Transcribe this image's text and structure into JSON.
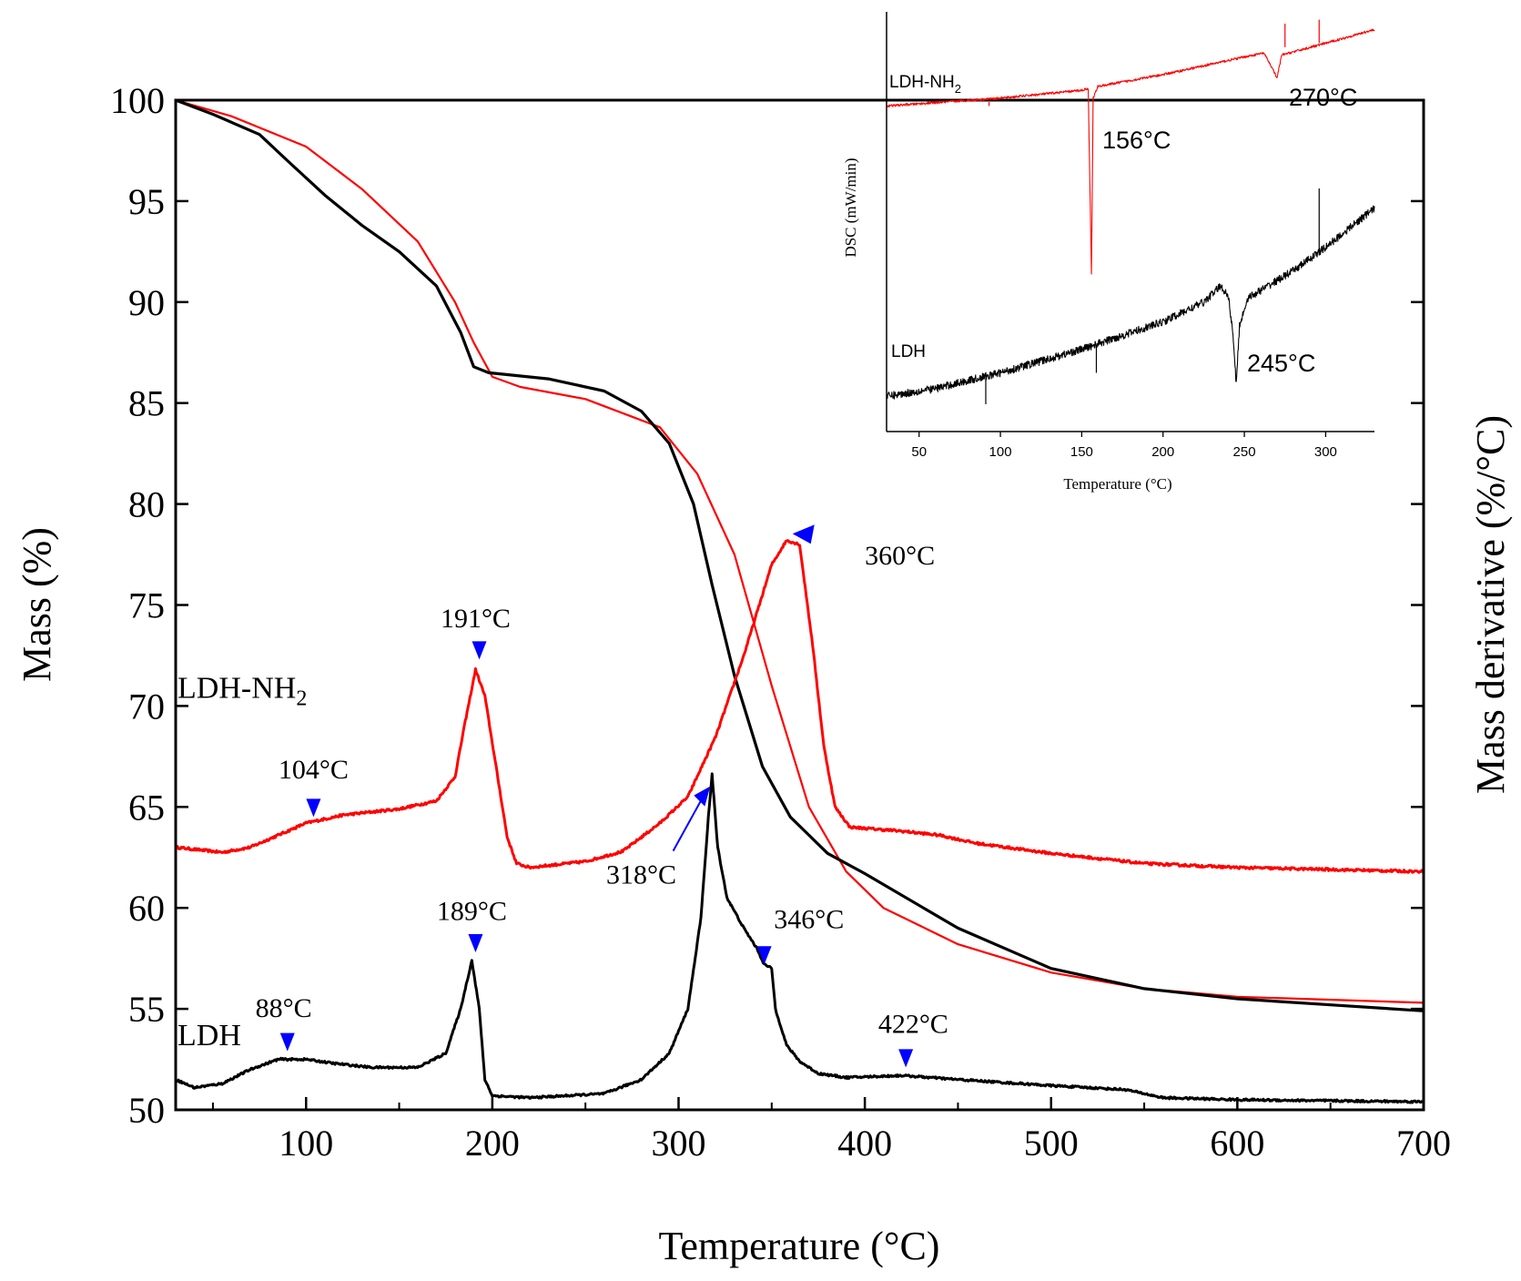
{
  "chart_data": [
    {
      "type": "line",
      "role": "main",
      "xlabel": "Temperature (°C)",
      "ylabel": "Mass (%)",
      "y2label": "Mass derivative (%/°C)",
      "xlim": [
        30,
        700
      ],
      "ylim": [
        50,
        100
      ],
      "x_ticks": [
        100,
        200,
        300,
        400,
        500,
        600,
        700
      ],
      "y_ticks": [
        50,
        55,
        60,
        65,
        70,
        75,
        80,
        85,
        90,
        95,
        100
      ],
      "colors": {
        "LDH": "#000000",
        "LDH-NH2": "#ff0000",
        "marker": "#0000ff"
      },
      "series": [
        {
          "name": "LDH-NH2 mass",
          "color": "#ff0000",
          "kind": "tga",
          "points": [
            [
              30,
              100
            ],
            [
              60,
              99.2
            ],
            [
              100,
              97.7
            ],
            [
              130,
              95.6
            ],
            [
              160,
              93
            ],
            [
              180,
              90
            ],
            [
              190,
              88
            ],
            [
              200,
              86.3
            ],
            [
              215,
              85.8
            ],
            [
              250,
              85.2
            ],
            [
              290,
              83.8
            ],
            [
              310,
              81.5
            ],
            [
              330,
              77.5
            ],
            [
              350,
              71
            ],
            [
              370,
              65
            ],
            [
              390,
              61.8
            ],
            [
              410,
              60
            ],
            [
              450,
              58.2
            ],
            [
              500,
              56.8
            ],
            [
              550,
              56
            ],
            [
              600,
              55.6
            ],
            [
              700,
              55.3
            ]
          ]
        },
        {
          "name": "LDH mass",
          "color": "#000000",
          "kind": "tga",
          "points": [
            [
              30,
              100
            ],
            [
              50,
              99.3
            ],
            [
              75,
              98.3
            ],
            [
              90,
              97
            ],
            [
              110,
              95.3
            ],
            [
              130,
              93.8
            ],
            [
              150,
              92.5
            ],
            [
              170,
              90.8
            ],
            [
              183,
              88.5
            ],
            [
              190,
              86.8
            ],
            [
              198,
              86.5
            ],
            [
              230,
              86.2
            ],
            [
              260,
              85.6
            ],
            [
              280,
              84.6
            ],
            [
              295,
              83
            ],
            [
              308,
              80
            ],
            [
              318,
              76
            ],
            [
              330,
              71.5
            ],
            [
              345,
              67
            ],
            [
              360,
              64.5
            ],
            [
              380,
              62.7
            ],
            [
              400,
              61.7
            ],
            [
              450,
              59
            ],
            [
              500,
              57
            ],
            [
              550,
              56
            ],
            [
              600,
              55.5
            ],
            [
              650,
              55.2
            ],
            [
              700,
              54.9
            ]
          ]
        },
        {
          "name": "LDH-NH2 derivative",
          "color": "#ff0000",
          "kind": "dtg",
          "noise": 0.12,
          "points": [
            [
              30,
              63
            ],
            [
              40,
              62.9
            ],
            [
              55,
              62.75
            ],
            [
              70,
              63
            ],
            [
              85,
              63.6
            ],
            [
              100,
              64.2
            ],
            [
              120,
              64.6
            ],
            [
              150,
              64.9
            ],
            [
              170,
              65.3
            ],
            [
              180,
              66.5
            ],
            [
              185,
              69
            ],
            [
              191,
              71.8
            ],
            [
              196,
              70.5
            ],
            [
              202,
              67
            ],
            [
              208,
              63.5
            ],
            [
              213,
              62.2
            ],
            [
              220,
              62
            ],
            [
              250,
              62.3
            ],
            [
              270,
              62.8
            ],
            [
              290,
              64.2
            ],
            [
              305,
              65.5
            ],
            [
              320,
              68.5
            ],
            [
              335,
              72.5
            ],
            [
              350,
              77
            ],
            [
              358,
              78.2
            ],
            [
              365,
              78
            ],
            [
              372,
              73
            ],
            [
              378,
              68
            ],
            [
              384,
              65
            ],
            [
              392,
              64
            ],
            [
              420,
              63.8
            ],
            [
              440,
              63.6
            ],
            [
              460,
              63.2
            ],
            [
              500,
              62.7
            ],
            [
              550,
              62.2
            ],
            [
              600,
              62
            ],
            [
              700,
              61.8
            ]
          ]
        },
        {
          "name": "LDH derivative",
          "color": "#000000",
          "kind": "dtg",
          "noise": 0.1,
          "points": [
            [
              30,
              51.5
            ],
            [
              40,
              51.1
            ],
            [
              55,
              51.3
            ],
            [
              70,
              52
            ],
            [
              85,
              52.5
            ],
            [
              100,
              52.5
            ],
            [
              115,
              52.3
            ],
            [
              135,
              52.1
            ],
            [
              160,
              52.1
            ],
            [
              175,
              52.8
            ],
            [
              183,
              55
            ],
            [
              189,
              57.4
            ],
            [
              193,
              55
            ],
            [
              196,
              51.5
            ],
            [
              200,
              50.7
            ],
            [
              220,
              50.6
            ],
            [
              260,
              50.8
            ],
            [
              280,
              51.5
            ],
            [
              295,
              52.8
            ],
            [
              305,
              55
            ],
            [
              312,
              59.5
            ],
            [
              316,
              64.5
            ],
            [
              318,
              66.6
            ],
            [
              321,
              63
            ],
            [
              326,
              60.5
            ],
            [
              335,
              59
            ],
            [
              342,
              58
            ],
            [
              346,
              57.2
            ],
            [
              350,
              57
            ],
            [
              352,
              55
            ],
            [
              358,
              53.2
            ],
            [
              365,
              52.4
            ],
            [
              375,
              51.8
            ],
            [
              390,
              51.6
            ],
            [
              420,
              51.7
            ],
            [
              450,
              51.5
            ],
            [
              500,
              51.2
            ],
            [
              540,
              51
            ],
            [
              560,
              50.6
            ],
            [
              600,
              50.5
            ],
            [
              700,
              50.4
            ]
          ]
        }
      ],
      "series_labels": [
        {
          "text": "LDH-NH",
          "sub": "2",
          "x": 30,
          "y": 70.4
        },
        {
          "text": "LDH",
          "x": 30,
          "y": 53.2
        }
      ],
      "annotations": [
        {
          "label": "104°C",
          "marker_x": 104,
          "marker_y": 64.5,
          "label_x": 104,
          "label_y": 66.4,
          "dir": "down"
        },
        {
          "label": "191°C",
          "marker_x": 193,
          "marker_y": 72.3,
          "label_x": 191,
          "label_y": 73.9,
          "dir": "down"
        },
        {
          "label": "360°C",
          "marker_x": 370,
          "marker_y": 78.3,
          "label_x": 400,
          "label_y": 77,
          "dir": "left"
        },
        {
          "label": "318°C",
          "marker_x": 318,
          "marker_y": 66.2,
          "label_x": 280,
          "label_y": 61.2,
          "dir": "arrow"
        },
        {
          "label": "189°C",
          "marker_x": 191,
          "marker_y": 57.8,
          "label_x": 189,
          "label_y": 59.4,
          "dir": "down"
        },
        {
          "label": "346°C",
          "marker_x": 346,
          "marker_y": 57.2,
          "label_x": 370,
          "label_y": 59,
          "dir": "down"
        },
        {
          "label": "88°C",
          "marker_x": 90,
          "marker_y": 52.9,
          "label_x": 88,
          "label_y": 54.6,
          "dir": "down"
        },
        {
          "label": "422°C",
          "marker_x": 422,
          "marker_y": 52.1,
          "label_x": 426,
          "label_y": 53.8,
          "dir": "down"
        }
      ]
    },
    {
      "type": "line",
      "role": "inset",
      "xlabel": "Temperature (°C)",
      "ylabel": "DSC (mW/min)",
      "xlim": [
        30,
        330
      ],
      "ylim": [
        0,
        1
      ],
      "x_ticks": [
        50,
        100,
        150,
        200,
        250,
        300
      ],
      "series": [
        {
          "name": "LDH-NH2",
          "color": "#ff0000",
          "noise": 0.006,
          "points": [
            [
              30,
              0.76
            ],
            [
              100,
              0.78
            ],
            [
              150,
              0.8
            ],
            [
              154,
              0.805
            ],
            [
              156,
              0.33
            ],
            [
              157,
              0.78
            ],
            [
              160,
              0.81
            ],
            [
              200,
              0.84
            ],
            [
              250,
              0.885
            ],
            [
              262,
              0.895
            ],
            [
              268,
              0.85
            ],
            [
              270,
              0.83
            ],
            [
              273,
              0.89
            ],
            [
              300,
              0.92
            ],
            [
              330,
              0.955
            ]
          ],
          "spikes": [
            [
              93,
              0.77,
              0.76
            ],
            [
              275,
              0.91,
              0.97
            ],
            [
              296,
              0.92,
              0.98
            ]
          ]
        },
        {
          "name": "LDH",
          "color": "#000000",
          "noise": 0.02,
          "points": [
            [
              30,
              0.02
            ],
            [
              60,
              0.04
            ],
            [
              100,
              0.08
            ],
            [
              150,
              0.14
            ],
            [
              200,
              0.21
            ],
            [
              225,
              0.26
            ],
            [
              235,
              0.3
            ],
            [
              240,
              0.28
            ],
            [
              243,
              0.18
            ],
            [
              245,
              0.05
            ],
            [
              247,
              0.2
            ],
            [
              252,
              0.27
            ],
            [
              280,
              0.34
            ],
            [
              300,
              0.4
            ],
            [
              330,
              0.5
            ]
          ],
          "spikes": [
            [
              91,
              0.08,
              0.0
            ],
            [
              159,
              0.15,
              0.08
            ],
            [
              296,
              0.39,
              0.55
            ]
          ]
        }
      ],
      "series_labels": [
        {
          "text": "LDH-NH",
          "sub": "2"
        },
        {
          "text": "LDH"
        }
      ],
      "annotations": [
        "270°C",
        "156°C",
        "245°C"
      ]
    }
  ]
}
